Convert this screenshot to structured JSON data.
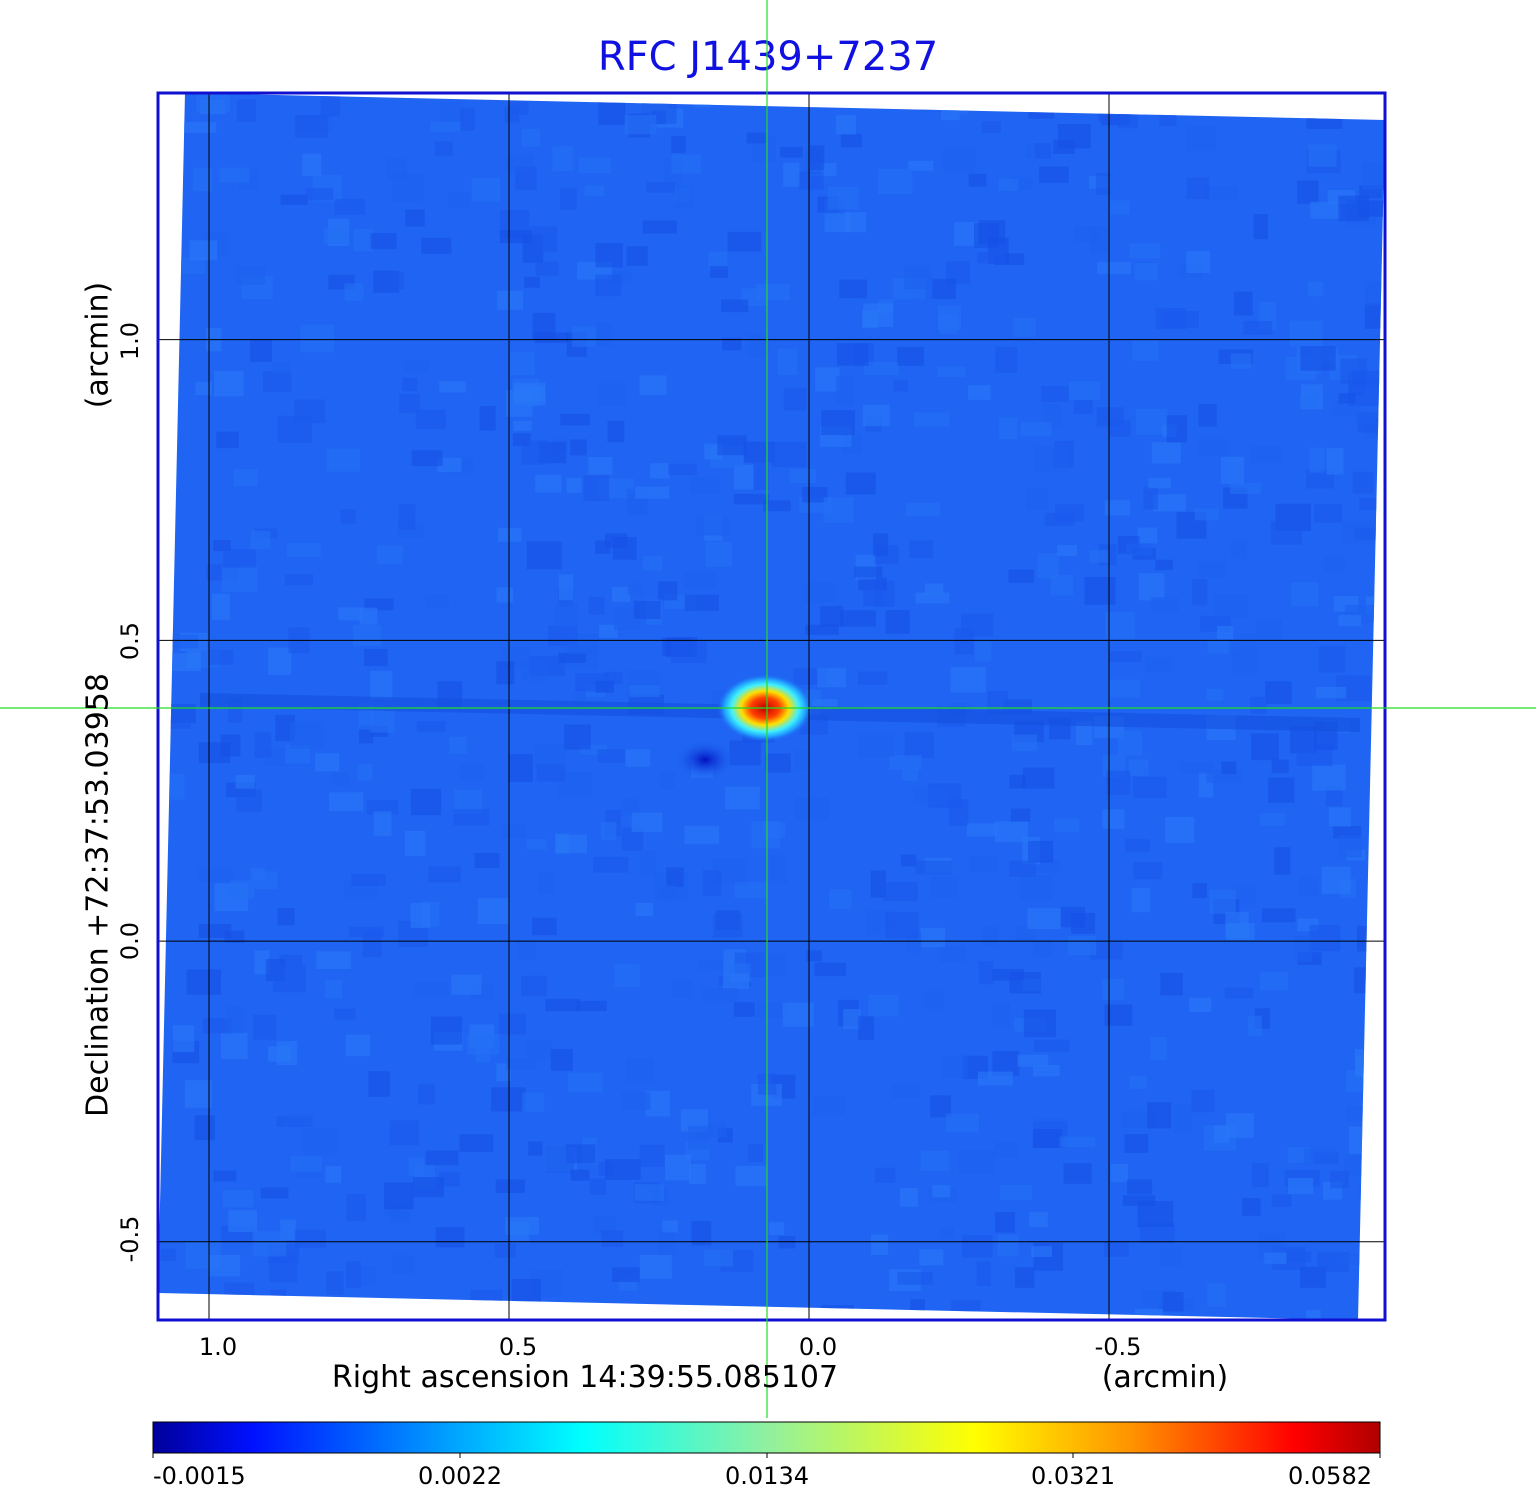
{
  "title": "RFC J1439+7237",
  "chart_data": {
    "type": "heatmap",
    "title": "RFC J1439+7237",
    "xlabel": "Right ascension  14:39:55.085107",
    "xunit": "(arcmin)",
    "ylabel": "Declination  +72:37:53.03958",
    "yunit": "(arcmin)",
    "x_ticks": [
      "1.0",
      "0.5",
      "0.0",
      "-0.5"
    ],
    "x_tick_values": [
      1.0,
      0.5,
      0.0,
      -0.5
    ],
    "y_ticks": [
      "1.0",
      "0.5",
      "0.0",
      "-0.5"
    ],
    "y_tick_values": [
      1.0,
      0.5,
      0.0,
      -0.5
    ],
    "xlim": [
      1.085,
      -0.96
    ],
    "ylim": [
      -0.63,
      1.41
    ],
    "grid": true,
    "crosshair": {
      "x": 0.073,
      "y": 0.388
    },
    "source_peak": {
      "x": 0.073,
      "y": 0.388,
      "value": 0.0582
    },
    "colormap": "jet",
    "colorbar": {
      "position": "bottom",
      "ticks": [
        "-0.0015",
        "0.0022",
        "0.0134",
        "0.0321",
        "0.0582"
      ],
      "range": [
        -0.0015,
        0.0582
      ]
    },
    "colors": {
      "background_level": "#1f64f2",
      "frame": "#1010d0",
      "crosshair": "#22dd22",
      "title": "#1010e0"
    }
  }
}
